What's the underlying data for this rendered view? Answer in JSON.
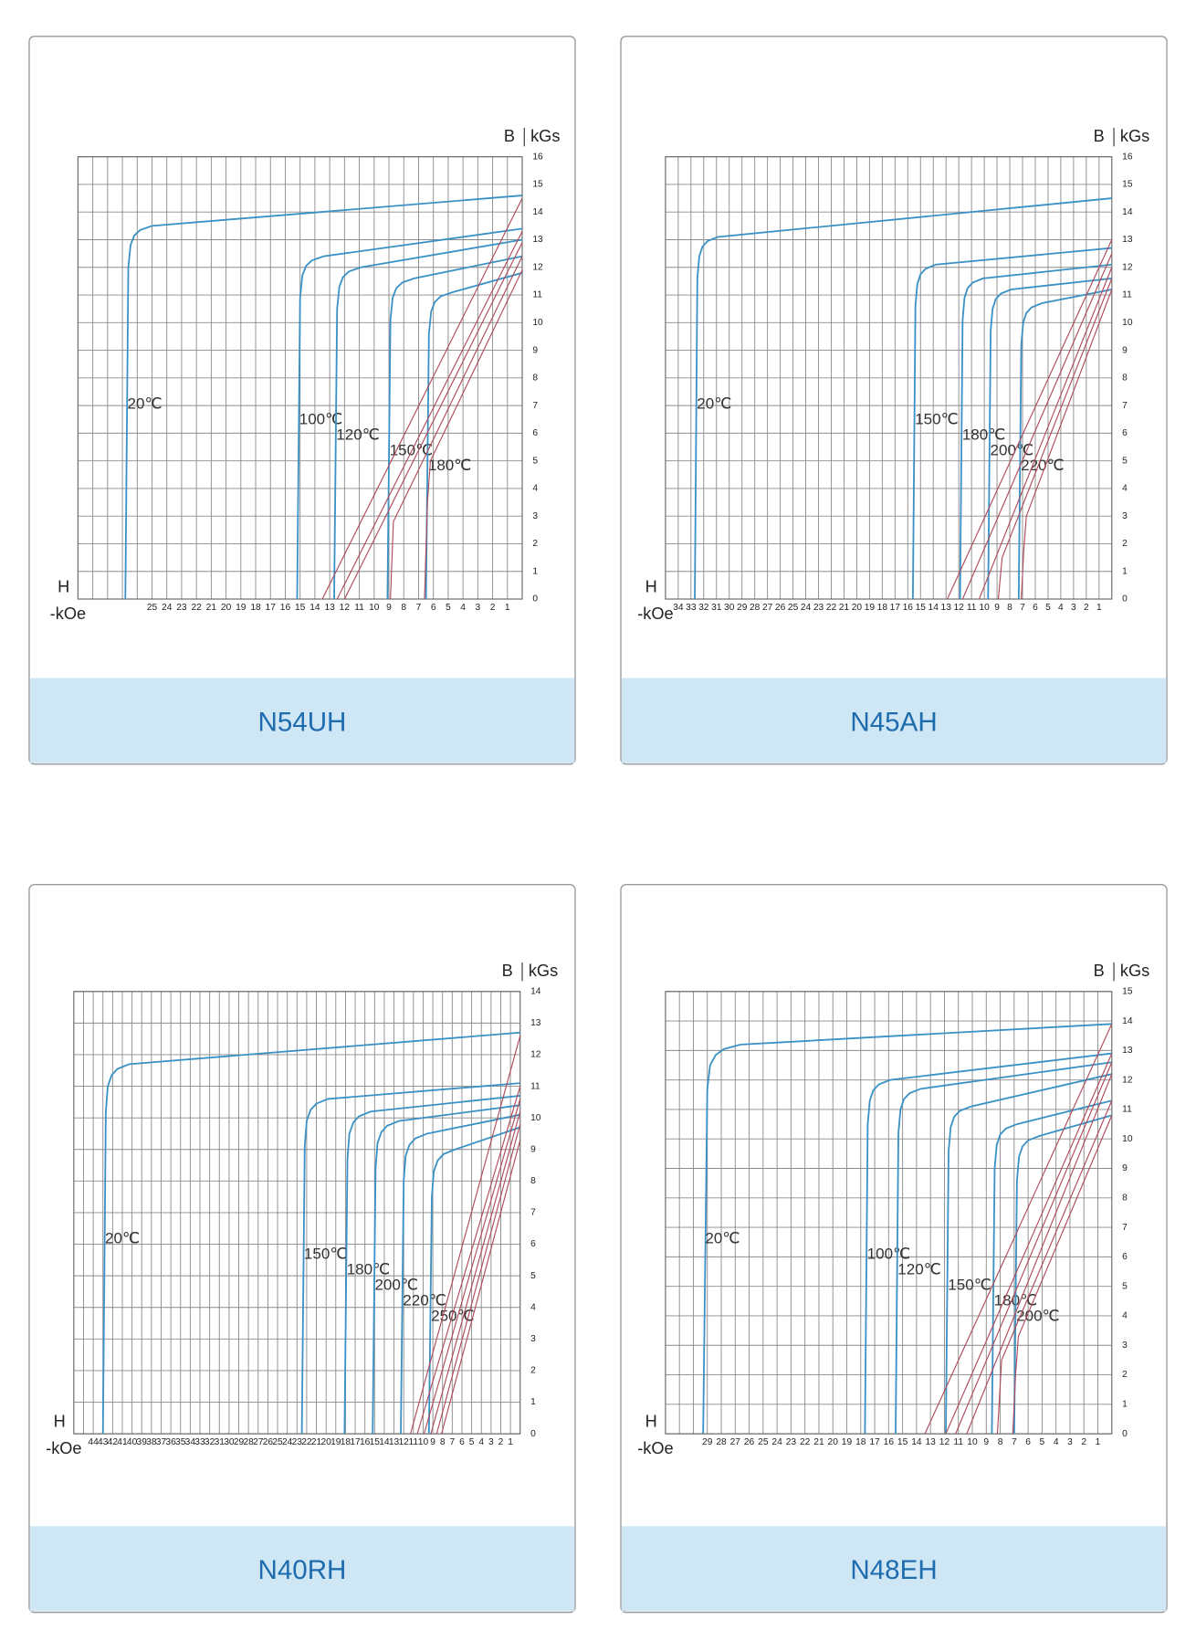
{
  "chart_data": [
    {
      "type": "line",
      "title": "N54UH",
      "x_axis_label": "H",
      "x_unit": "-kOe",
      "y_axis_label": "B",
      "y_unit": "kGs",
      "grid": true,
      "xlim": [
        30,
        0
      ],
      "ylim": [
        0,
        16
      ],
      "xticks": [
        {
          "value": 29,
          "label": null
        },
        {
          "value": 28,
          "label": null
        },
        {
          "value": 27,
          "label": null
        },
        {
          "value": 26,
          "label": null
        },
        25,
        24,
        23,
        22,
        21,
        20,
        19,
        18,
        17,
        16,
        15,
        14,
        13,
        12,
        11,
        10,
        9,
        8,
        7,
        6,
        5,
        4,
        3,
        2,
        1
      ],
      "yticks": [
        0,
        1,
        2,
        3,
        4,
        5,
        6,
        7,
        8,
        9,
        10,
        11,
        12,
        13,
        14,
        15,
        16
      ],
      "series": [
        {
          "name": "20℃",
          "color": "#3a92c4",
          "x": [
            26.8,
            26.6,
            26.45,
            26.2,
            25.8,
            25.0,
            0
          ],
          "values": [
            0,
            12.0,
            12.8,
            13.15,
            13.35,
            13.5,
            14.6
          ]
        },
        {
          "name": "100℃",
          "color": "#3a92c4",
          "x": [
            15.2,
            15.0,
            14.85,
            14.6,
            14.2,
            13.4,
            0
          ],
          "values": [
            0,
            10.9,
            11.7,
            12.05,
            12.25,
            12.4,
            13.4
          ]
        },
        {
          "name": "120℃",
          "color": "#3a92c4",
          "x": [
            12.7,
            12.5,
            12.35,
            12.1,
            11.7,
            10.9,
            0
          ],
          "values": [
            0,
            10.5,
            11.3,
            11.65,
            11.85,
            12.0,
            13.0
          ]
        },
        {
          "name": "150℃",
          "color": "#3a92c4",
          "x": [
            9.1,
            8.9,
            8.75,
            8.5,
            8.1,
            7.3,
            0
          ],
          "values": [
            0,
            10.1,
            10.9,
            11.25,
            11.45,
            11.6,
            12.4
          ]
        },
        {
          "name": "180℃",
          "color": "#3a92c4",
          "x": [
            6.5,
            6.3,
            6.15,
            5.9,
            5.5,
            4.7,
            0
          ],
          "values": [
            0,
            9.6,
            10.4,
            10.75,
            10.95,
            11.1,
            11.8
          ]
        },
        {
          "color": "#b04a5a",
          "x": [
            13.5,
            0
          ],
          "values": [
            0,
            14.5
          ]
        },
        {
          "color": "#b04a5a",
          "x": [
            12.5,
            0
          ],
          "values": [
            0,
            13.3
          ]
        },
        {
          "color": "#b04a5a",
          "x": [
            12.0,
            0
          ],
          "values": [
            0,
            12.9
          ]
        },
        {
          "color": "#b04a5a",
          "x": [
            8.9,
            8.7,
            0
          ],
          "values": [
            0,
            2.8,
            12.4
          ]
        },
        {
          "color": "#b04a5a",
          "x": [
            6.6,
            6.4,
            6.2,
            0
          ],
          "values": [
            0,
            3.5,
            5.0,
            11.9
          ]
        }
      ]
    },
    {
      "type": "line",
      "title": "N45AH",
      "x_axis_label": "H",
      "x_unit": "-kOe",
      "y_axis_label": "B",
      "y_unit": "kGs",
      "grid": true,
      "xlim": [
        35,
        0
      ],
      "ylim": [
        0,
        16
      ],
      "xticks": [
        34,
        33,
        32,
        31,
        30,
        29,
        28,
        27,
        26,
        25,
        24,
        23,
        22,
        21,
        20,
        19,
        18,
        17,
        16,
        15,
        14,
        13,
        12,
        11,
        10,
        9,
        8,
        7,
        6,
        5,
        4,
        3,
        2,
        1
      ],
      "yticks": [
        0,
        1,
        2,
        3,
        4,
        5,
        6,
        7,
        8,
        9,
        10,
        11,
        12,
        13,
        14,
        15,
        16
      ],
      "series": [
        {
          "name": "20℃",
          "color": "#3a92c4",
          "x": [
            32.7,
            32.5,
            32.35,
            32.1,
            31.7,
            30.9,
            0
          ],
          "values": [
            0,
            11.6,
            12.4,
            12.75,
            12.95,
            13.1,
            14.5
          ]
        },
        {
          "name": "150℃",
          "color": "#3a92c4",
          "x": [
            15.6,
            15.4,
            15.25,
            15.0,
            14.6,
            13.8,
            0
          ],
          "values": [
            0,
            10.6,
            11.4,
            11.75,
            11.95,
            12.1,
            12.7
          ]
        },
        {
          "name": "180℃",
          "color": "#3a92c4",
          "x": [
            11.9,
            11.7,
            11.55,
            11.3,
            10.9,
            10.1,
            0
          ],
          "values": [
            0,
            10.1,
            10.9,
            11.25,
            11.45,
            11.6,
            12.1
          ]
        },
        {
          "name": "200℃",
          "color": "#3a92c4",
          "x": [
            9.7,
            9.5,
            9.35,
            9.1,
            8.7,
            7.9,
            0
          ],
          "values": [
            0,
            9.7,
            10.5,
            10.85,
            11.05,
            11.2,
            11.6
          ]
        },
        {
          "name": "220℃",
          "color": "#3a92c4",
          "x": [
            7.3,
            7.1,
            6.95,
            6.7,
            6.3,
            5.5,
            0
          ],
          "values": [
            0,
            9.2,
            10.0,
            10.35,
            10.55,
            10.7,
            11.2
          ]
        },
        {
          "color": "#b04a5a",
          "x": [
            12.9,
            0
          ],
          "values": [
            0,
            13.0
          ]
        },
        {
          "color": "#b04a5a",
          "x": [
            11.7,
            0
          ],
          "values": [
            0,
            12.5
          ]
        },
        {
          "color": "#b04a5a",
          "x": [
            10.4,
            0
          ],
          "values": [
            0,
            12.0
          ]
        },
        {
          "color": "#b04a5a",
          "x": [
            8.9,
            8.6,
            0
          ],
          "values": [
            0,
            1.5,
            11.6
          ]
        },
        {
          "color": "#b04a5a",
          "x": [
            7.1,
            6.9,
            6.7,
            0
          ],
          "values": [
            0,
            1.8,
            3.0,
            11.2
          ]
        }
      ]
    },
    {
      "type": "line",
      "title": "N40RH",
      "x_axis_label": "H",
      "x_unit": "-kOe",
      "y_axis_label": "B",
      "y_unit": "kGs",
      "grid": true,
      "xlim": [
        46,
        0
      ],
      "ylim": [
        0,
        14
      ],
      "xticks": [
        {
          "value": 45,
          "label": null
        },
        44,
        43,
        42,
        41,
        40,
        39,
        38,
        37,
        36,
        35,
        34,
        33,
        32,
        31,
        30,
        29,
        28,
        27,
        26,
        25,
        24,
        23,
        22,
        21,
        20,
        19,
        18,
        17,
        16,
        15,
        14,
        13,
        12,
        11,
        10,
        9,
        8,
        7,
        6,
        5,
        4,
        3,
        2,
        1
      ],
      "yticks": [
        0,
        1,
        2,
        3,
        4,
        5,
        6,
        7,
        8,
        9,
        10,
        11,
        12,
        13,
        14
      ],
      "series": [
        {
          "name": "20℃",
          "color": "#3a92c4",
          "x": [
            43.0,
            42.7,
            42.5,
            42.1,
            41.5,
            40.3,
            0
          ],
          "values": [
            0,
            10.2,
            11.0,
            11.35,
            11.55,
            11.7,
            12.7
          ]
        },
        {
          "name": "150℃",
          "color": "#3a92c4",
          "x": [
            22.5,
            22.2,
            22.0,
            21.6,
            21.0,
            19.8,
            0
          ],
          "values": [
            0,
            9.1,
            9.9,
            10.25,
            10.45,
            10.6,
            11.1
          ]
        },
        {
          "name": "180℃",
          "color": "#3a92c4",
          "x": [
            18.1,
            17.8,
            17.6,
            17.2,
            16.6,
            15.4,
            0
          ],
          "values": [
            0,
            8.7,
            9.5,
            9.85,
            10.05,
            10.2,
            10.7
          ]
        },
        {
          "name": "200℃",
          "color": "#3a92c4",
          "x": [
            15.2,
            14.9,
            14.7,
            14.3,
            13.7,
            12.5,
            0
          ],
          "values": [
            0,
            8.4,
            9.2,
            9.55,
            9.75,
            9.9,
            10.4
          ]
        },
        {
          "name": "220℃",
          "color": "#3a92c4",
          "x": [
            12.3,
            12.0,
            11.8,
            11.4,
            10.8,
            9.6,
            0
          ],
          "values": [
            0,
            8.0,
            8.8,
            9.15,
            9.35,
            9.5,
            10.1
          ]
        },
        {
          "name": "250℃",
          "color": "#3a92c4",
          "x": [
            9.4,
            9.1,
            8.9,
            8.5,
            7.9,
            6.7,
            0
          ],
          "values": [
            0,
            7.5,
            8.3,
            8.65,
            8.85,
            9.0,
            9.7
          ]
        },
        {
          "color": "#b04a5a",
          "x": [
            11.3,
            0
          ],
          "values": [
            0,
            12.6
          ]
        },
        {
          "color": "#b04a5a",
          "x": [
            10.6,
            0
          ],
          "values": [
            0,
            11.0
          ]
        },
        {
          "color": "#b04a5a",
          "x": [
            9.9,
            0
          ],
          "values": [
            0,
            10.6
          ]
        },
        {
          "color": "#b04a5a",
          "x": [
            9.2,
            0
          ],
          "values": [
            0,
            10.2
          ]
        },
        {
          "color": "#b04a5a",
          "x": [
            8.6,
            0
          ],
          "values": [
            0,
            9.8
          ]
        },
        {
          "color": "#b04a5a",
          "x": [
            8.1,
            0
          ],
          "values": [
            0,
            9.3
          ]
        }
      ]
    },
    {
      "type": "line",
      "title": "N48EH",
      "x_axis_label": "H",
      "x_unit": "-kOe",
      "y_axis_label": "B",
      "y_unit": "kGs",
      "grid": true,
      "xlim": [
        32,
        0
      ],
      "ylim": [
        0,
        15
      ],
      "xticks": [
        {
          "value": 31,
          "label": null
        },
        {
          "value": 30,
          "label": null
        },
        29,
        28,
        27,
        26,
        25,
        24,
        23,
        22,
        21,
        20,
        19,
        18,
        17,
        16,
        15,
        14,
        13,
        12,
        11,
        10,
        9,
        8,
        7,
        6,
        5,
        4,
        3,
        2,
        1
      ],
      "yticks": [
        0,
        1,
        2,
        3,
        4,
        5,
        6,
        7,
        8,
        9,
        10,
        11,
        12,
        13,
        14,
        15
      ],
      "series": [
        {
          "name": "20℃",
          "color": "#3a92c4",
          "x": [
            29.3,
            29.0,
            28.8,
            28.4,
            27.8,
            26.6,
            0
          ],
          "values": [
            0,
            11.7,
            12.5,
            12.85,
            13.05,
            13.2,
            13.9
          ]
        },
        {
          "name": "100℃",
          "color": "#3a92c4",
          "x": [
            17.7,
            17.5,
            17.35,
            17.1,
            16.7,
            15.9,
            0
          ],
          "values": [
            0,
            10.5,
            11.3,
            11.65,
            11.85,
            12.0,
            12.9
          ]
        },
        {
          "name": "120℃",
          "color": "#3a92c4",
          "x": [
            15.5,
            15.3,
            15.15,
            14.9,
            14.5,
            13.7,
            0
          ],
          "values": [
            0,
            10.2,
            11.0,
            11.35,
            11.55,
            11.7,
            12.6
          ]
        },
        {
          "name": "150℃",
          "color": "#3a92c4",
          "x": [
            11.9,
            11.7,
            11.55,
            11.3,
            10.9,
            10.1,
            0
          ],
          "values": [
            0,
            9.6,
            10.4,
            10.75,
            10.95,
            11.1,
            12.2
          ]
        },
        {
          "name": "180℃",
          "color": "#3a92c4",
          "x": [
            8.6,
            8.4,
            8.25,
            8.0,
            7.6,
            6.8,
            0
          ],
          "values": [
            0,
            9.0,
            9.8,
            10.15,
            10.35,
            10.5,
            11.3
          ]
        },
        {
          "name": "200℃",
          "color": "#3a92c4",
          "x": [
            7.0,
            6.8,
            6.65,
            6.4,
            6.0,
            5.2,
            0
          ],
          "values": [
            0,
            8.6,
            9.4,
            9.75,
            9.95,
            10.1,
            10.8
          ]
        },
        {
          "color": "#b04a5a",
          "x": [
            13.4,
            0
          ],
          "values": [
            0,
            13.9
          ]
        },
        {
          "color": "#b04a5a",
          "x": [
            11.9,
            0
          ],
          "values": [
            0,
            12.9
          ]
        },
        {
          "color": "#b04a5a",
          "x": [
            11.2,
            0
          ],
          "values": [
            0,
            12.6
          ]
        },
        {
          "color": "#b04a5a",
          "x": [
            10.4,
            0
          ],
          "values": [
            0,
            12.2
          ]
        },
        {
          "color": "#b04a5a",
          "x": [
            8.2,
            7.9,
            0
          ],
          "values": [
            0,
            2.5,
            11.3
          ]
        },
        {
          "color": "#b04a5a",
          "x": [
            7.1,
            6.9,
            6.7,
            0
          ],
          "values": [
            0,
            2.0,
            3.3,
            10.8
          ]
        }
      ]
    }
  ]
}
